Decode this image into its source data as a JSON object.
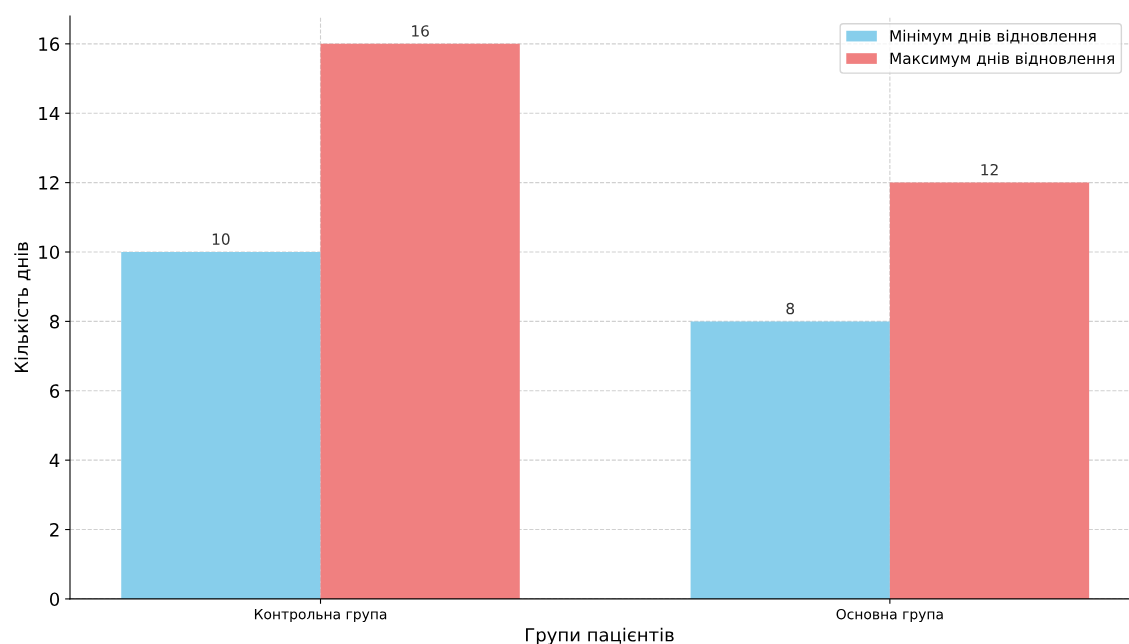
{
  "chart_data": {
    "type": "bar",
    "xlabel": "Групи пацієнтів",
    "ylabel": "Кількість днів",
    "categories": [
      "Контрольна група",
      "Основна група"
    ],
    "series": [
      {
        "name": "Мінімум днів відновлення",
        "color": "#87ceeb",
        "values": [
          10,
          8
        ]
      },
      {
        "name": "Максимум днів відновлення",
        "color": "#f08080",
        "values": [
          16,
          12
        ]
      }
    ],
    "ylim": [
      0,
      16.8
    ],
    "yticks": [
      0,
      2,
      4,
      6,
      8,
      10,
      12,
      14,
      16
    ],
    "data_labels": true,
    "grid": true,
    "legend": "top right"
  }
}
